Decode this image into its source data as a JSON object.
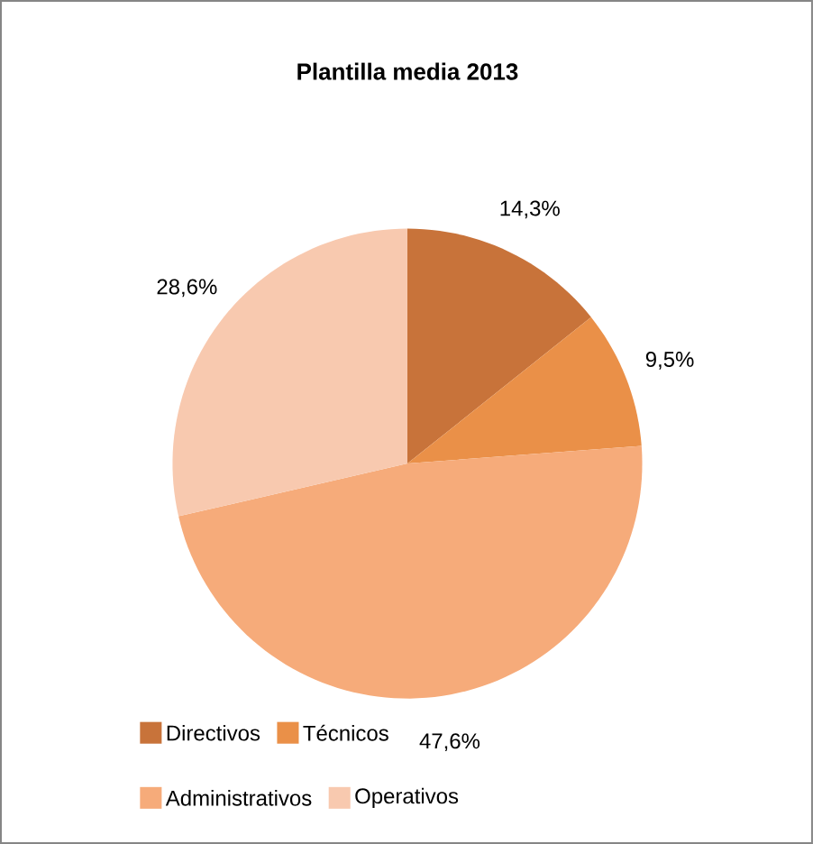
{
  "chart_data": {
    "type": "pie",
    "title": "Plantilla media 2013",
    "categories": [
      "Directivos",
      "Técnicos",
      "Administrativos",
      "Operativos"
    ],
    "values": [
      14.3,
      9.5,
      47.6,
      28.6
    ],
    "value_labels": [
      "14,3%",
      "9,5%",
      "47,6%",
      "28,6%"
    ],
    "colors": [
      "#c8733a",
      "#ea9048",
      "#f6ab7a",
      "#f8c9af"
    ],
    "legend": "bottom"
  }
}
